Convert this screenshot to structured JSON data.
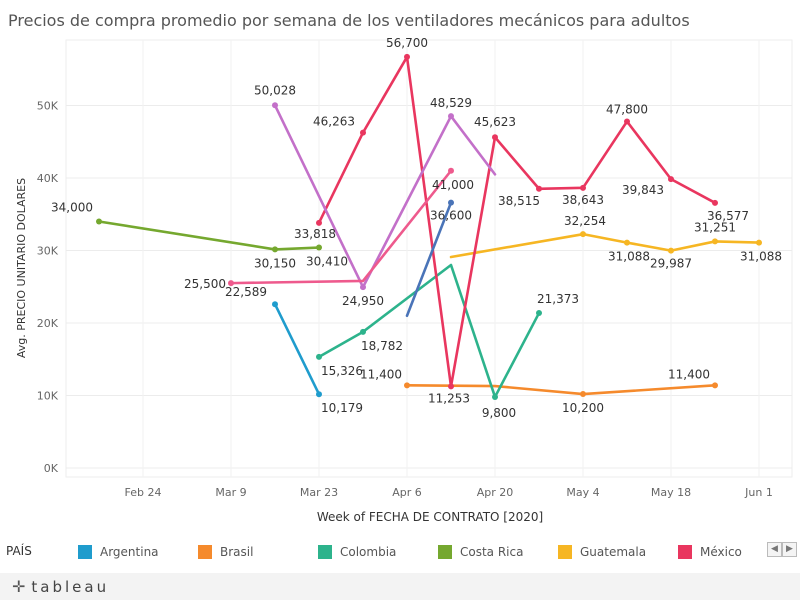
{
  "title": "Precios de compra promedio por semana de los ventiladores mecánicos para adultos",
  "chart_data": {
    "type": "line",
    "xlabel": "Week of FECHA DE CONTRATO [2020]",
    "ylabel": "Avg. PRECIO UNITARIO DOLARES",
    "x_ticks": [
      "Feb 24",
      "Mar 9",
      "Mar 23",
      "Apr 6",
      "Apr 20",
      "May 4",
      "May 18",
      "Jun 1"
    ],
    "y_ticks": [
      "0K",
      "10K",
      "20K",
      "30K",
      "40K",
      "50K"
    ],
    "ylim": [
      0,
      57000
    ],
    "series": [
      {
        "name": "Argentina",
        "color": "#1f9ccd",
        "points": [
          {
            "x": "2020-03-16",
            "y": 22589,
            "label": "22,589"
          },
          {
            "x": "2020-03-23",
            "y": 10179,
            "label": "10,179"
          }
        ]
      },
      {
        "name": "Brasil",
        "color": "#f58a2c",
        "points": [
          {
            "x": "2020-04-06",
            "y": 11400,
            "label": "11,400"
          },
          {
            "x": "2020-04-20",
            "y": 11300,
            "label": ""
          },
          {
            "x": "2020-05-04",
            "y": 10200,
            "label": "10,200"
          },
          {
            "x": "2020-05-25",
            "y": 11400,
            "label": "11,400"
          }
        ]
      },
      {
        "name": "Colombia",
        "color": "#2db38c",
        "points": [
          {
            "x": "2020-03-23",
            "y": 15326,
            "label": "15,326"
          },
          {
            "x": "2020-03-30",
            "y": 18782,
            "label": "18,782"
          },
          {
            "x": "2020-04-13",
            "y": 28000,
            "label": ""
          },
          {
            "x": "2020-04-20",
            "y": 9800,
            "label": "9,800"
          },
          {
            "x": "2020-04-27",
            "y": 21373,
            "label": "21,373"
          }
        ]
      },
      {
        "name": "Costa Rica",
        "color": "#75a82f",
        "points": [
          {
            "x": "2020-02-17",
            "y": 34000,
            "label": "34,000"
          },
          {
            "x": "2020-03-16",
            "y": 30150,
            "label": "30,150"
          },
          {
            "x": "2020-03-23",
            "y": 30410,
            "label": "30,410"
          }
        ]
      },
      {
        "name": "Guatemala",
        "color": "#f6b623",
        "points": [
          {
            "x": "2020-04-13",
            "y": 29100,
            "label": ""
          },
          {
            "x": "2020-05-04",
            "y": 32254,
            "label": "32,254"
          },
          {
            "x": "2020-05-11",
            "y": 31088,
            "label": "31,088"
          },
          {
            "x": "2020-05-18",
            "y": 29987,
            "label": "29,987"
          },
          {
            "x": "2020-05-25",
            "y": 31251,
            "label": "31,251"
          },
          {
            "x": "2020-06-01",
            "y": 31088,
            "label": "31,088"
          }
        ]
      },
      {
        "name": "México",
        "color": "#e9365f",
        "points": [
          {
            "x": "2020-03-23",
            "y": 33818,
            "label": "33,818"
          },
          {
            "x": "2020-03-30",
            "y": 46263,
            "label": "46,263"
          },
          {
            "x": "2020-04-06",
            "y": 56700,
            "label": "56,700"
          },
          {
            "x": "2020-04-13",
            "y": 11253,
            "label": "11,253"
          },
          {
            "x": "2020-04-20",
            "y": 45623,
            "label": "45,623"
          },
          {
            "x": "2020-04-27",
            "y": 38515,
            "label": "38,515"
          },
          {
            "x": "2020-05-04",
            "y": 38643,
            "label": "38,643"
          },
          {
            "x": "2020-05-11",
            "y": 47800,
            "label": "47,800"
          },
          {
            "x": "2020-05-18",
            "y": 39843,
            "label": "39,843"
          },
          {
            "x": "2020-05-25",
            "y": 36577,
            "label": "36,577"
          }
        ]
      },
      {
        "name": "",
        "color": "#c370c9",
        "points": [
          {
            "x": "2020-03-16",
            "y": 50028,
            "label": "50,028"
          },
          {
            "x": "2020-03-30",
            "y": 24950,
            "label": "24,950"
          },
          {
            "x": "2020-04-13",
            "y": 48529,
            "label": "48,529"
          },
          {
            "x": "2020-04-20",
            "y": 40500,
            "label": ""
          }
        ]
      },
      {
        "name": "",
        "color": "#ee5a8d",
        "points": [
          {
            "x": "2020-03-09",
            "y": 25500,
            "label": "25,500"
          },
          {
            "x": "2020-03-30",
            "y": 25800,
            "label": ""
          },
          {
            "x": "2020-04-13",
            "y": 41000,
            "label": "41,000"
          }
        ]
      },
      {
        "name": "",
        "color": "#4a74b8",
        "points": [
          {
            "x": "2020-04-06",
            "y": 21000,
            "label": ""
          },
          {
            "x": "2020-04-13",
            "y": 36600,
            "label": "36,600"
          }
        ]
      }
    ],
    "grid": true,
    "legend_position": "bottom"
  },
  "legend": {
    "title": "PAÍS",
    "items": [
      {
        "name": "Argentina",
        "color": "#1f9ccd"
      },
      {
        "name": "Brasil",
        "color": "#f58a2c"
      },
      {
        "name": "Colombia",
        "color": "#2db38c"
      },
      {
        "name": "Costa Rica",
        "color": "#75a82f"
      },
      {
        "name": "Guatemala",
        "color": "#f6b623"
      },
      {
        "name": "México",
        "color": "#e9365f"
      }
    ],
    "prev_icon": "chevron-left-icon",
    "next_icon": "chevron-right-icon"
  },
  "footer": {
    "logo_icon": "tableau-logo-icon",
    "brand": "tableau"
  }
}
